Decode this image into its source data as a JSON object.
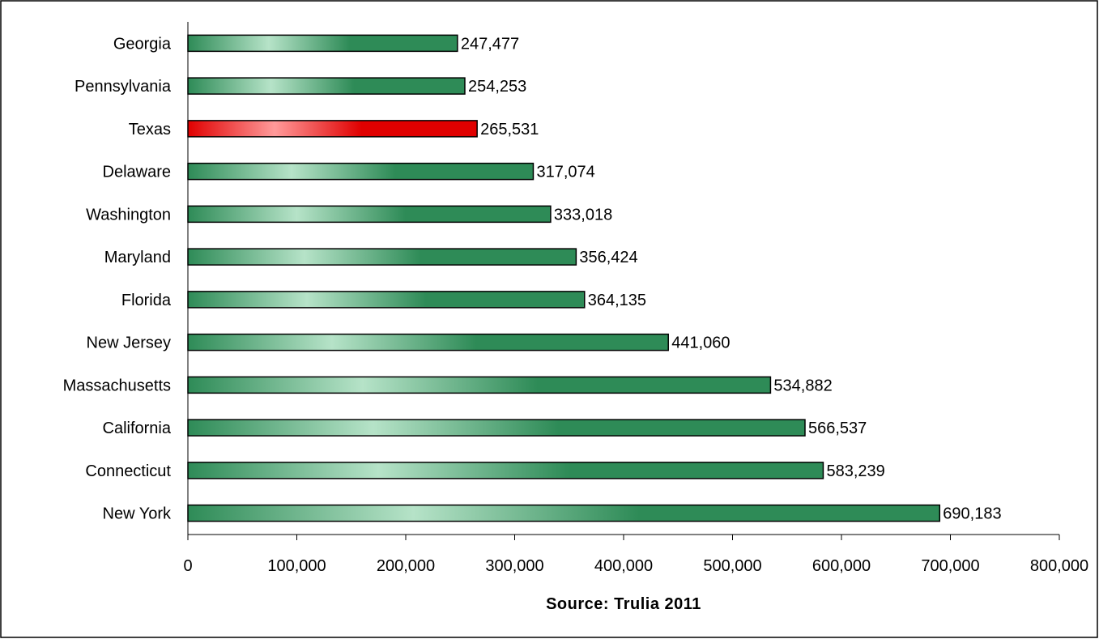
{
  "chart_data": {
    "type": "bar",
    "orientation": "horizontal",
    "categories": [
      "Georgia",
      "Pennsylvania",
      "Texas",
      "Delaware",
      "Washington",
      "Maryland",
      "Florida",
      "New Jersey",
      "Massachusetts",
      "California",
      "Connecticut",
      "New York"
    ],
    "values": [
      247477,
      254253,
      265531,
      317074,
      333018,
      356424,
      364135,
      441060,
      534882,
      566537,
      583239,
      690183
    ],
    "value_labels": [
      "247,477",
      "254,253",
      "265,531",
      "317,074",
      "333,018",
      "356,424",
      "364,135",
      "441,060",
      "534,882",
      "566,537",
      "583,239",
      "690,183"
    ],
    "highlight_category": "Texas",
    "title": "",
    "xlabel": "Source: Trulia 2011",
    "ylabel": "",
    "xlim": [
      0,
      800000
    ],
    "xticks": [
      0,
      100000,
      200000,
      300000,
      400000,
      500000,
      600000,
      700000,
      800000
    ],
    "xtick_labels": [
      "0",
      "100,000",
      "200,000",
      "300,000",
      "400,000",
      "500,000",
      "600,000",
      "700,000",
      "800,000"
    ],
    "grid": false,
    "legend": "none",
    "colors": {
      "bar_dark": "#2e8b57",
      "bar_light": "#b6e3c8",
      "highlight_dark": "#e00000",
      "highlight_light": "#ff9a9a",
      "outline": "#000000"
    }
  }
}
